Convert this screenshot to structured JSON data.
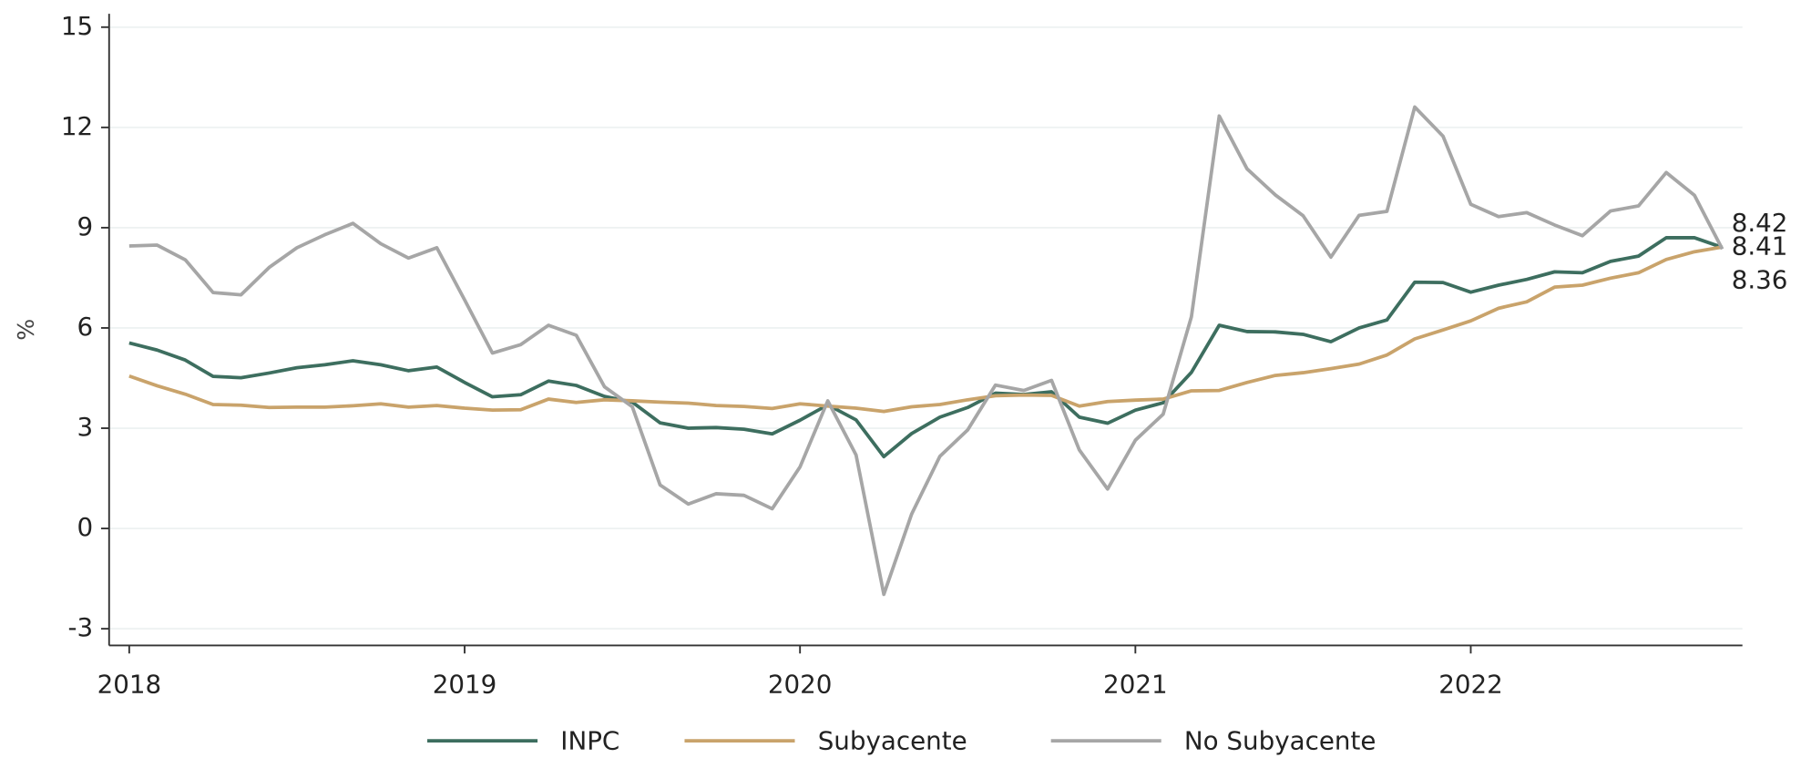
{
  "chart_data": {
    "type": "line",
    "y_label": "%",
    "x": [
      2018,
      2018.083,
      2018.167,
      2018.25,
      2018.333,
      2018.417,
      2018.5,
      2018.583,
      2018.667,
      2018.75,
      2018.833,
      2018.917,
      2019,
      2019.083,
      2019.167,
      2019.25,
      2019.333,
      2019.417,
      2019.5,
      2019.583,
      2019.667,
      2019.75,
      2019.833,
      2019.917,
      2020,
      2020.083,
      2020.167,
      2020.25,
      2020.333,
      2020.417,
      2020.5,
      2020.583,
      2020.667,
      2020.75,
      2020.833,
      2020.917,
      2021,
      2021.083,
      2021.167,
      2021.25,
      2021.333,
      2021.417,
      2021.5,
      2021.583,
      2021.667,
      2021.75,
      2021.833,
      2021.917,
      2022,
      2022.083,
      2022.167,
      2022.25,
      2022.333,
      2022.417,
      2022.5,
      2022.583,
      2022.667,
      2022.75
    ],
    "series": [
      {
        "name": "INPC",
        "color": "#3d6e5f",
        "values": [
          5.55,
          5.34,
          5.04,
          4.55,
          4.51,
          4.65,
          4.81,
          4.9,
          5.02,
          4.9,
          4.72,
          4.83,
          4.37,
          3.94,
          4.0,
          4.41,
          4.28,
          3.95,
          3.78,
          3.16,
          3.0,
          3.02,
          2.97,
          2.83,
          3.24,
          3.7,
          3.25,
          2.15,
          2.84,
          3.33,
          3.62,
          4.05,
          4.01,
          4.09,
          3.33,
          3.15,
          3.54,
          3.76,
          4.67,
          6.08,
          5.89,
          5.88,
          5.81,
          5.59,
          6.0,
          6.24,
          7.37,
          7.36,
          7.07,
          7.28,
          7.45,
          7.68,
          7.65,
          7.99,
          8.15,
          8.7,
          8.7,
          8.41
        ]
      },
      {
        "name": "Subyacente",
        "color": "#c9a36b",
        "values": [
          4.56,
          4.27,
          4.02,
          3.71,
          3.69,
          3.62,
          3.63,
          3.63,
          3.67,
          3.73,
          3.63,
          3.68,
          3.6,
          3.54,
          3.55,
          3.87,
          3.77,
          3.85,
          3.82,
          3.78,
          3.75,
          3.68,
          3.65,
          3.59,
          3.73,
          3.66,
          3.6,
          3.5,
          3.64,
          3.71,
          3.85,
          3.97,
          3.99,
          3.98,
          3.66,
          3.8,
          3.84,
          3.87,
          4.12,
          4.13,
          4.37,
          4.58,
          4.66,
          4.78,
          4.92,
          5.19,
          5.67,
          5.94,
          6.21,
          6.59,
          6.78,
          7.22,
          7.28,
          7.49,
          7.65,
          8.05,
          8.28,
          8.42
        ]
      },
      {
        "name": "No Subyacente",
        "color": "#a6a6a6",
        "values": [
          8.45,
          8.48,
          8.04,
          7.06,
          6.99,
          7.81,
          8.4,
          8.79,
          9.13,
          8.52,
          8.09,
          8.4,
          6.84,
          5.25,
          5.5,
          6.08,
          5.78,
          4.24,
          3.64,
          1.3,
          0.73,
          1.04,
          0.99,
          0.59,
          1.84,
          3.82,
          2.2,
          -1.97,
          0.43,
          2.16,
          2.95,
          4.29,
          4.13,
          4.43,
          2.35,
          1.18,
          2.64,
          3.42,
          6.34,
          12.34,
          10.76,
          9.98,
          9.36,
          8.12,
          9.37,
          9.49,
          12.61,
          11.74,
          9.7,
          9.33,
          9.45,
          9.08,
          8.76,
          9.5,
          9.65,
          10.65,
          9.97,
          8.36
        ]
      }
    ],
    "xlim": [
      2017.94,
      2022.81
    ],
    "xticks": [
      2018,
      2019,
      2020,
      2021,
      2022
    ],
    "ylim": [
      -3.5,
      15.4
    ],
    "yticks": [
      -3,
      0,
      3,
      6,
      9,
      12,
      15
    ],
    "grid": true,
    "legend": "bottom"
  }
}
